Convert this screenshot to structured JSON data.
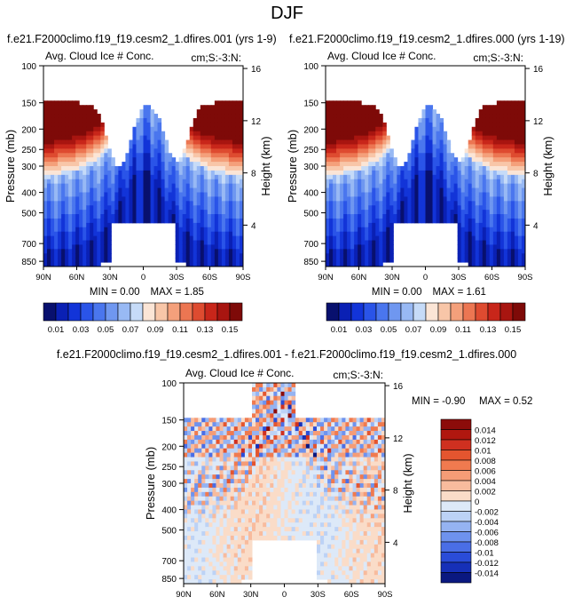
{
  "page": {
    "title": "DJF"
  },
  "panels": [
    {
      "subtitle": "f.e21.F2000climo.f19_f19.cesm2_1.dfires.001 (yrs 1-9)",
      "var_label": "Avg. Cloud Ice # Conc.",
      "units_label": "cm;S:-3:N:",
      "min_label": "MIN =  0.00",
      "max_label": "MAX =  1.85"
    },
    {
      "subtitle": "f.e21.F2000climo.f19_f19.cesm2_1.dfires.000 (yrs 1-19)",
      "var_label": "Avg. Cloud Ice # Conc.",
      "units_label": "cm;S:-3:N:",
      "min_label": "MIN =  0.00",
      "max_label": "MAX =  1.61"
    },
    {
      "subtitle": "f.e21.F2000climo.f19_f19.cesm2_1.dfires.001 - f.e21.F2000climo.f19_f19.cesm2_1.dfires.000",
      "var_label": "Avg. Cloud Ice # Conc.",
      "units_label": "cm;S:-3:N:",
      "min_label": "MIN =  -0.90",
      "max_label": "MAX =  0.52"
    }
  ],
  "chart_data": [
    {
      "type": "heatmap",
      "title": "f.e21.F2000climo.f19_f19.cesm2_1.dfires.001 (yrs 1-9)",
      "xlabel": "",
      "ylabel": "Pressure (mb)",
      "y2label": "Height (km)",
      "x_ticks": [
        "90N",
        "60N",
        "30N",
        "0",
        "30S",
        "60S",
        "90S"
      ],
      "y_ticks": [
        "100",
        "150",
        "200",
        "250",
        "300",
        "400",
        "500",
        "700",
        "850"
      ],
      "y2_ticks": [
        "16",
        "12",
        "8",
        "4"
      ],
      "colorbar": {
        "orientation": "horizontal",
        "labels": [
          "0.01",
          "0.03",
          "0.05",
          "0.07",
          "0.09",
          "0.11",
          "0.13",
          "0.15"
        ],
        "colors": [
          "#08106e",
          "#0a20b4",
          "#1234d8",
          "#2a54e8",
          "#4a76ee",
          "#6f97f0",
          "#98b9f4",
          "#c6dbf8",
          "#fbe5d6",
          "#f8c6a8",
          "#f4a07b",
          "#ec7652",
          "#de4b30",
          "#c8261a",
          "#a81510",
          "#7e0a08"
        ]
      },
      "min": 0.0,
      "max": 1.85
    },
    {
      "type": "heatmap",
      "title": "f.e21.F2000climo.f19_f19.cesm2_1.dfires.000 (yrs 1-19)",
      "xlabel": "",
      "ylabel": "Pressure (mb)",
      "y2label": "Height (km)",
      "x_ticks": [
        "90N",
        "60N",
        "30N",
        "0",
        "30S",
        "60S",
        "90S"
      ],
      "y_ticks": [
        "100",
        "150",
        "200",
        "250",
        "300",
        "400",
        "500",
        "700",
        "850"
      ],
      "y2_ticks": [
        "16",
        "12",
        "8",
        "4"
      ],
      "colorbar": {
        "orientation": "horizontal",
        "labels": [
          "0.01",
          "0.03",
          "0.05",
          "0.07",
          "0.09",
          "0.11",
          "0.13",
          "0.15"
        ],
        "colors": [
          "#08106e",
          "#0a20b4",
          "#1234d8",
          "#2a54e8",
          "#4a76ee",
          "#6f97f0",
          "#98b9f4",
          "#c6dbf8",
          "#fbe5d6",
          "#f8c6a8",
          "#f4a07b",
          "#ec7652",
          "#de4b30",
          "#c8261a",
          "#a81510",
          "#7e0a08"
        ]
      },
      "min": 0.0,
      "max": 1.61
    },
    {
      "type": "heatmap",
      "title": "f.e21.F2000climo.f19_f19.cesm2_1.dfires.001 - f.e21.F2000climo.f19_f19.cesm2_1.dfires.000",
      "xlabel": "",
      "ylabel": "Pressure (mb)",
      "y2label": "Height (km)",
      "x_ticks": [
        "90N",
        "60N",
        "30N",
        "0",
        "30S",
        "60S",
        "90S"
      ],
      "y_ticks": [
        "100",
        "150",
        "200",
        "250",
        "300",
        "400",
        "500",
        "700",
        "850"
      ],
      "y2_ticks": [
        "16",
        "12",
        "8",
        "4"
      ],
      "colorbar": {
        "orientation": "vertical",
        "labels": [
          "0.014",
          "0.012",
          "0.01",
          "0.008",
          "0.006",
          "0.004",
          "0.002",
          "0",
          "-0.002",
          "-0.004",
          "-0.006",
          "-0.008",
          "-0.01",
          "-0.012",
          "-0.014"
        ],
        "colors": [
          "#8c0c0a",
          "#b0170f",
          "#cf3020",
          "#e4552f",
          "#f07a4f",
          "#f59c76",
          "#f8bb9d",
          "#fadcc8",
          "#dde9f8",
          "#bcd2f6",
          "#95b3f2",
          "#6e92ee",
          "#4a6ee6",
          "#2a4cd8",
          "#1630b8",
          "#0a1880"
        ]
      },
      "min": -0.9,
      "max": 0.52
    }
  ]
}
